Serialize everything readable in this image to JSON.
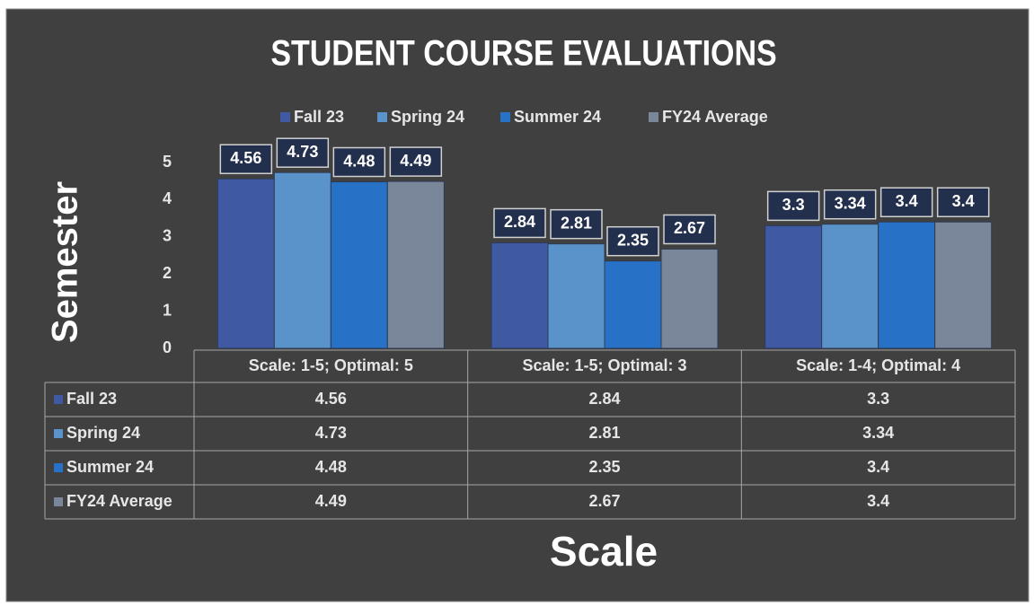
{
  "chart_data": {
    "type": "bar",
    "title": "STUDENT COURSE EVALUATIONS",
    "x_label": "Scale",
    "y_label": "Semester",
    "categories": [
      "Scale: 1-5; Optimal: 5",
      "Scale: 1-5; Optimal: 3",
      "Scale: 1-4; Optimal: 4"
    ],
    "series": [
      {
        "name": "Fall 23",
        "color": "#3f5aa3",
        "values": [
          4.56,
          2.84,
          3.3
        ]
      },
      {
        "name": "Spring 24",
        "color": "#5a93c9",
        "values": [
          4.73,
          2.81,
          3.34
        ]
      },
      {
        "name": "Summer 24",
        "color": "#2772c6",
        "values": [
          4.48,
          2.35,
          3.4
        ]
      },
      {
        "name": "FY24 Average",
        "color": "#7a879a",
        "values": [
          4.49,
          2.67,
          3.4
        ]
      }
    ],
    "ylim": [
      0,
      5
    ],
    "yticks": [
      0,
      1,
      2,
      3,
      4,
      5
    ],
    "legend": "top",
    "data_labels": true,
    "data_table": true
  }
}
